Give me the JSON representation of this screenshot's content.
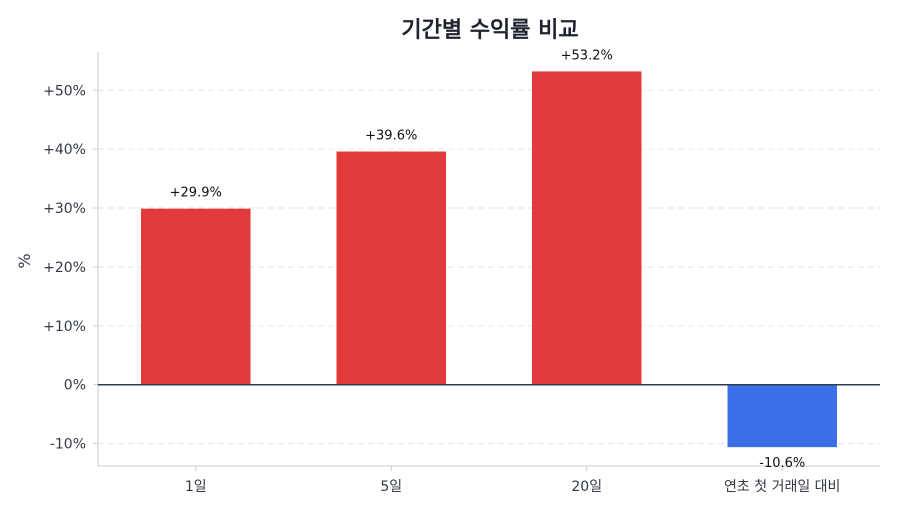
{
  "chart_data": {
    "type": "bar",
    "title": "기간별 수익률 비교",
    "xlabel": "",
    "ylabel": "%",
    "categories": [
      "1일",
      "5일",
      "20일",
      "연초 첫 거래일 대비"
    ],
    "values": [
      29.9,
      39.6,
      53.2,
      -10.6
    ],
    "value_labels": [
      "+29.9%",
      "+39.6%",
      "+53.2%",
      "-10.6%"
    ],
    "ylim": [
      -13.8,
      56.5
    ],
    "yticks": [
      -10,
      0,
      10,
      20,
      30,
      40,
      50
    ],
    "ytick_labels": [
      "-10%",
      "0%",
      "+10%",
      "+20%",
      "+30%",
      "+40%",
      "+50%"
    ],
    "grid": true,
    "colors": {
      "positive": "#e03a3a",
      "negative": "#3a6fe8",
      "zero_line": "#2f3b52",
      "grid": "#e3e6ea",
      "axis": "#c7ccd3"
    }
  }
}
